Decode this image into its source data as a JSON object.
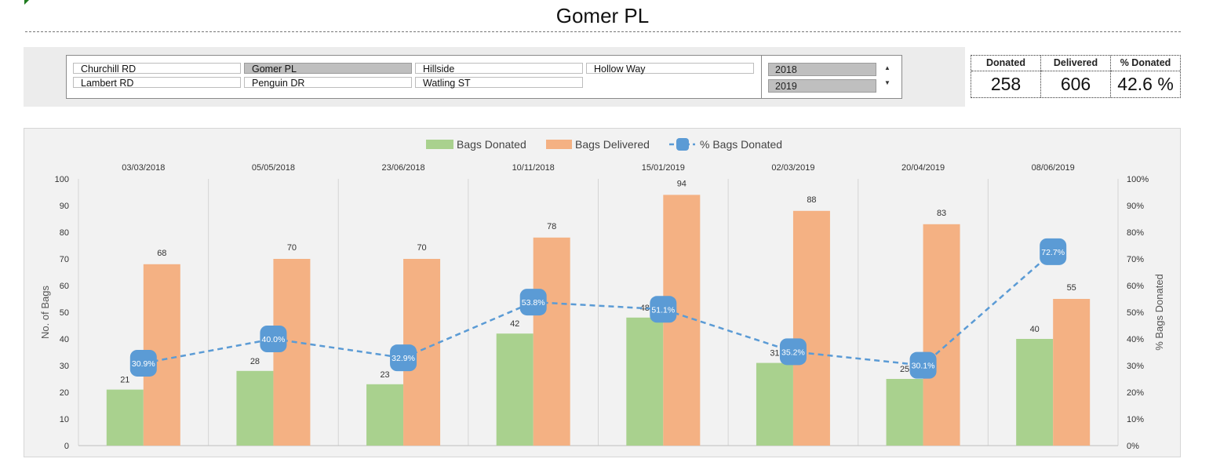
{
  "title": "Gomer PL",
  "slicer": {
    "locations": [
      {
        "label": "Churchill RD",
        "selected": false
      },
      {
        "label": "Gomer PL",
        "selected": true
      },
      {
        "label": "Hillside",
        "selected": false
      },
      {
        "label": "Hollow Way",
        "selected": false
      },
      {
        "label": "Lambert RD",
        "selected": false
      },
      {
        "label": "Penguin DR",
        "selected": false
      },
      {
        "label": "Watling ST",
        "selected": false
      }
    ],
    "years": [
      {
        "label": "2018",
        "selected": true
      },
      {
        "label": "2019",
        "selected": true
      }
    ],
    "scroll_up": "▲",
    "scroll_down": "▼"
  },
  "kpi": {
    "donated_label": "Donated",
    "delivered_label": "Delivered",
    "pct_label": "% Donated",
    "donated_value": "258",
    "delivered_value": "606",
    "pct_value": "42.6 %"
  },
  "colors": {
    "donated": "#a9d18e",
    "delivered": "#f4b183",
    "pct_line": "#5b9bd5"
  },
  "chart_data": {
    "type": "bar",
    "categories": [
      "03/03/2018",
      "05/05/2018",
      "23/06/2018",
      "10/11/2018",
      "15/01/2019",
      "02/03/2019",
      "20/04/2019",
      "08/06/2019"
    ],
    "series": [
      {
        "name": "Bags Donated",
        "type": "bar",
        "axis": "left",
        "values": [
          21,
          28,
          23,
          42,
          48,
          31,
          25,
          40
        ]
      },
      {
        "name": "Bags Delivered",
        "type": "bar",
        "axis": "left",
        "values": [
          68,
          70,
          70,
          78,
          94,
          88,
          83,
          55
        ]
      },
      {
        "name": "% Bags Donated",
        "type": "line",
        "axis": "right",
        "values": [
          30.9,
          40.0,
          32.9,
          53.8,
          51.1,
          35.2,
          30.1,
          72.7
        ],
        "labels": [
          "30.9%",
          "40.0%",
          "32.9%",
          "53.8%",
          "51.1%",
          "35.2%",
          "30.1%",
          "72.7%"
        ]
      }
    ],
    "ylabel": "No. of Bags",
    "y2label": "% Bags Donated",
    "ylim": [
      0,
      100
    ],
    "y2lim": [
      0,
      100
    ],
    "yticks": [
      "0",
      "10",
      "20",
      "30",
      "40",
      "50",
      "60",
      "70",
      "80",
      "90",
      "100"
    ],
    "y2ticks": [
      "0%",
      "10%",
      "20%",
      "30%",
      "40%",
      "50%",
      "60%",
      "70%",
      "80%",
      "90%",
      "100%"
    ],
    "legend_position": "top",
    "category_labels_position": "top",
    "grid": "vertical separators"
  }
}
